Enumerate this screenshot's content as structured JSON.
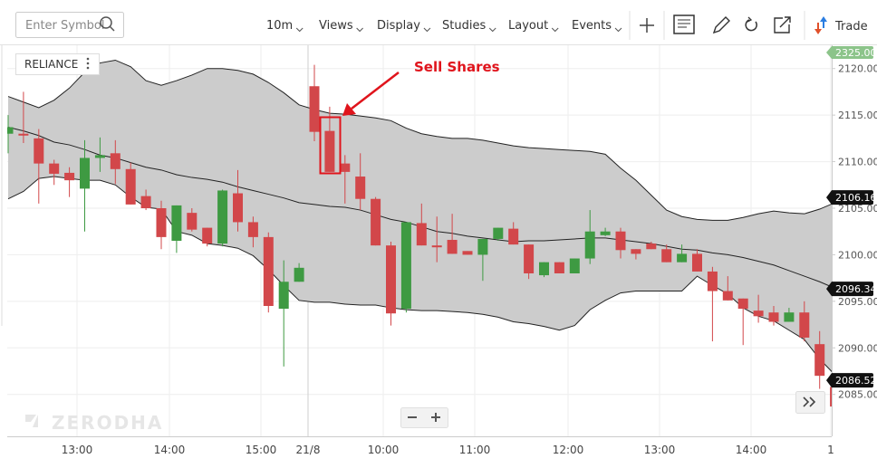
{
  "toolbar": {
    "search_placeholder": "Enter Symbol",
    "menus": [
      "10m",
      "Views",
      "Display",
      "Studies",
      "Layout",
      "Events"
    ],
    "trade": "Trade"
  },
  "chart_data": {
    "type": "candlestick",
    "symbol": "RELIANCE",
    "annotation": "Sell Shares",
    "watermark": "ZERODHA",
    "x_labels": [
      "13:00",
      "14:00",
      "15:00",
      "21/8",
      "10:00",
      "11:00",
      "12:00",
      "13:00",
      "14:00",
      "1"
    ],
    "ylim": [
      2080.5,
      2122.5
    ],
    "yticks": [
      {
        "value": 2085,
        "label": "2085.00"
      },
      {
        "value": 2090,
        "label": "2090.00"
      },
      {
        "value": 2095,
        "label": "2095.00"
      },
      {
        "value": 2100,
        "label": "2100.00"
      },
      {
        "value": 2105,
        "label": "2105.00"
      },
      {
        "value": 2110,
        "label": "2110.00"
      },
      {
        "value": 2115,
        "label": "2115.00"
      },
      {
        "value": 2120,
        "label": "2120.00"
      }
    ],
    "pinned_price_label": "2325.00",
    "price_labels": [
      {
        "value": 2106.16,
        "label": "2106.16"
      },
      {
        "value": 2096.34,
        "label": "2096.34"
      },
      {
        "value": 2086.52,
        "label": "2086.52"
      }
    ],
    "up_color": "#3e9a42",
    "down_color": "#d2474a",
    "band_color": "#cccccc",
    "line_color": "#222222",
    "open": [
      2113.0,
      2113.0,
      2112.5,
      2109.8,
      2108.8,
      2107.1,
      2110.4,
      2110.9,
      2109.2,
      2106.3,
      2105.0,
      2101.5,
      2104.5,
      2102.9,
      2101.2,
      2106.6,
      2103.5,
      2101.9,
      2094.2,
      2097.1,
      2118.1,
      2113.3,
      2109.8,
      2108.4,
      2106.0,
      2101.0,
      2094.2,
      2103.4,
      2101.0,
      2101.6,
      2100.4,
      2100.0,
      2101.7,
      2102.8,
      2101.1,
      2097.8,
      2099.2,
      2098.0,
      2099.6,
      2102.1,
      2102.5,
      2100.6,
      2101.2,
      2100.6,
      2099.2,
      2100.1,
      2098.2,
      2096.1,
      2095.3,
      2094.0,
      2093.8,
      2092.8,
      2093.8,
      2090.4,
      2085.8
    ],
    "high": [
      2115.0,
      2117.5,
      2113.5,
      2110.2,
      2109.4,
      2112.3,
      2112.6,
      2112.3,
      2109.9,
      2107.0,
      2105.8,
      2105.3,
      2105.0,
      2102.9,
      2107.0,
      2109.1,
      2104.1,
      2102.4,
      2099.4,
      2099.1,
      2120.4,
      2115.9,
      2110.7,
      2110.9,
      2106.2,
      2101.4,
      2103.5,
      2105.5,
      2104.1,
      2104.4,
      2100.4,
      2101.7,
      2102.9,
      2103.5,
      2101.1,
      2099.2,
      2099.2,
      2099.6,
      2104.8,
      2102.9,
      2102.9,
      2100.6,
      2101.4,
      2101.1,
      2101.1,
      2100.6,
      2098.7,
      2097.7,
      2095.3,
      2095.7,
      2094.5,
      2094.3,
      2095.0,
      2091.8,
      2086.0
    ],
    "low": [
      2110.9,
      2112.0,
      2105.5,
      2107.5,
      2106.2,
      2102.5,
      2108.9,
      2107.6,
      2105.4,
      2104.8,
      2100.6,
      2100.2,
      2102.5,
      2100.9,
      2100.9,
      2102.5,
      2100.8,
      2093.8,
      2088.0,
      2097.1,
      2112.2,
      2108.9,
      2105.5,
      2104.8,
      2101.0,
      2092.4,
      2093.8,
      2101.0,
      2099.2,
      2100.1,
      2100.0,
      2097.2,
      2101.5,
      2101.1,
      2097.4,
      2097.6,
      2098.0,
      2098.0,
      2099.0,
      2102.0,
      2099.6,
      2099.5,
      2100.6,
      2099.2,
      2099.2,
      2098.2,
      2090.7,
      2095.1,
      2090.3,
      2092.7,
      2092.4,
      2092.8,
      2090.7,
      2085.6,
      2083.7
    ],
    "close": [
      2113.7,
      2112.8,
      2109.8,
      2108.7,
      2108.0,
      2110.4,
      2110.7,
      2109.2,
      2105.4,
      2105.0,
      2101.9,
      2105.3,
      2102.7,
      2101.2,
      2106.9,
      2103.5,
      2101.9,
      2094.5,
      2097.1,
      2098.6,
      2113.2,
      2108.9,
      2108.9,
      2106.0,
      2101.0,
      2093.7,
      2103.5,
      2101.0,
      2100.8,
      2100.1,
      2100.0,
      2101.7,
      2102.9,
      2101.1,
      2098.0,
      2099.2,
      2098.0,
      2099.6,
      2102.5,
      2102.5,
      2100.5,
      2100.1,
      2100.6,
      2099.2,
      2100.1,
      2098.2,
      2096.1,
      2095.1,
      2094.2,
      2093.4,
      2092.8,
      2093.8,
      2091.1,
      2087.0,
      2083.7
    ],
    "upper_band": [
      2117.0,
      2116.4,
      2115.8,
      2116.6,
      2117.9,
      2119.6,
      2120.6,
      2120.9,
      2120.2,
      2118.7,
      2118.2,
      2118.7,
      2119.3,
      2120.0,
      2120.0,
      2119.8,
      2119.4,
      2118.5,
      2117.4,
      2116.1,
      2115.6,
      2115.2,
      2115.1,
      2114.9,
      2114.7,
      2114.4,
      2113.6,
      2113.0,
      2112.7,
      2112.5,
      2112.5,
      2112.3,
      2112.0,
      2111.7,
      2111.5,
      2111.4,
      2111.3,
      2111.2,
      2111.1,
      2110.8,
      2109.3,
      2108.0,
      2106.4,
      2104.8,
      2104.1,
      2103.8,
      2103.7,
      2103.7,
      2104.0,
      2104.4,
      2104.7,
      2104.5,
      2104.4,
      2104.9,
      2105.6
    ],
    "middle_band": [
      2113.7,
      2113.3,
      2112.8,
      2112.1,
      2111.8,
      2111.3,
      2110.7,
      2110.4,
      2109.9,
      2109.4,
      2109.1,
      2108.6,
      2108.3,
      2108.1,
      2107.8,
      2107.3,
      2106.9,
      2106.5,
      2106.1,
      2105.6,
      2105.4,
      2105.2,
      2105.1,
      2104.8,
      2104.3,
      2103.8,
      2103.5,
      2103.0,
      2102.5,
      2102.3,
      2102.0,
      2101.8,
      2101.6,
      2101.4,
      2101.5,
      2101.5,
      2101.6,
      2101.7,
      2101.8,
      2101.8,
      2101.6,
      2101.4,
      2101.2,
      2100.9,
      2100.6,
      2100.5,
      2100.2,
      2100.0,
      2099.7,
      2099.3,
      2098.9,
      2098.3,
      2097.7,
      2097.1,
      2096.4
    ],
    "lower_band": [
      2106.0,
      2106.8,
      2108.2,
      2108.4,
      2108.2,
      2108.0,
      2108.0,
      2107.5,
      2106.2,
      2105.1,
      2104.9,
      2102.5,
      2102.1,
      2101.2,
      2101.0,
      2100.7,
      2099.9,
      2098.4,
      2096.7,
      2095.1,
      2094.9,
      2094.9,
      2094.7,
      2094.6,
      2094.6,
      2094.3,
      2094.1,
      2094.0,
      2094.0,
      2093.9,
      2093.8,
      2093.6,
      2093.3,
      2092.8,
      2092.6,
      2092.3,
      2091.9,
      2092.4,
      2094.1,
      2095.1,
      2095.9,
      2096.1,
      2096.1,
      2096.1,
      2096.1,
      2097.7,
      2096.7,
      2095.8,
      2094.3,
      2093.4,
      2092.9,
      2091.9,
      2090.9,
      2088.8,
      2087.1
    ]
  }
}
